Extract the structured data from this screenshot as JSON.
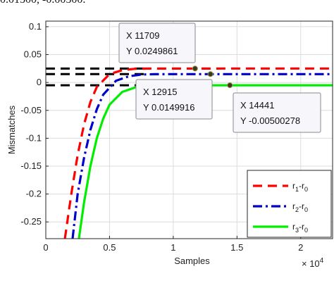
{
  "caption": "0.01500, -0.00500.",
  "chart_data": {
    "type": "line",
    "xlabel": "Samples",
    "ylabel": "Mismatches",
    "x_multiplier": "× 10^4",
    "xlim": [
      0,
      22500
    ],
    "ylim": [
      -0.28,
      0.11
    ],
    "x_ticks": [
      0,
      5000,
      10000,
      15000,
      20000
    ],
    "x_tick_labels": [
      "0",
      "0.5",
      "1",
      "1.5",
      "2"
    ],
    "y_ticks": [
      0.1,
      0.05,
      0,
      -0.05,
      -0.1,
      -0.15,
      -0.2,
      -0.25
    ],
    "y_tick_labels": [
      "0.1",
      "0.05",
      "0",
      "-0.05",
      "-0.1",
      "-0.15",
      "-0.2",
      "-0.25"
    ],
    "grid": true,
    "legend_position": "bottom-right",
    "series": [
      {
        "name": "r1-r0",
        "legend_main": "r",
        "legend_sub1": "1",
        "legend_mid": "-r",
        "legend_sub2": "0",
        "color": "#ff0000",
        "style": "dashed",
        "x": [
          1500,
          2000,
          2500,
          3000,
          3500,
          4000,
          5000,
          6000,
          7000,
          8000,
          10000,
          11709,
          15000,
          22500
        ],
        "y": [
          -0.28,
          -0.2,
          -0.13,
          -0.075,
          -0.035,
          -0.008,
          0.015,
          0.022,
          0.0245,
          0.0249,
          0.02499,
          0.0249861,
          0.025,
          0.025
        ]
      },
      {
        "name": "r2-r0",
        "legend_main": "r",
        "legend_sub1": "2",
        "legend_mid": "-r",
        "legend_sub2": "0",
        "color": "#0000cc",
        "style": "dashdot",
        "x": [
          2100,
          2500,
          3000,
          3500,
          4000,
          4500,
          5500,
          6500,
          7500,
          8500,
          10000,
          12915,
          22500
        ],
        "y": [
          -0.28,
          -0.2,
          -0.135,
          -0.085,
          -0.048,
          -0.022,
          0.003,
          0.011,
          0.0142,
          0.0148,
          0.01498,
          0.0149916,
          0.015
        ]
      },
      {
        "name": "r3-r0",
        "legend_main": "r",
        "legend_sub1": "3",
        "legend_mid": "-r",
        "legend_sub2": "0",
        "color": "#00ee00",
        "style": "solid",
        "x": [
          2600,
          3000,
          3500,
          4000,
          4500,
          5000,
          6000,
          7000,
          8000,
          9000,
          10000,
          14441,
          22500
        ],
        "y": [
          -0.28,
          -0.215,
          -0.15,
          -0.1,
          -0.065,
          -0.04,
          -0.017,
          -0.009,
          -0.0062,
          -0.0054,
          -0.0051,
          -0.00500278,
          -0.005
        ]
      }
    ],
    "reference_lines": [
      {
        "y": 0.025,
        "color": "#000000",
        "style": "dashed",
        "x_end": 8000
      },
      {
        "y": 0.015,
        "color": "#000000",
        "style": "dashed",
        "x_end": 8000
      },
      {
        "y": -0.005,
        "color": "#000000",
        "style": "dashed",
        "x_end": 8000
      }
    ],
    "datatips": [
      {
        "x": 11709,
        "y": 0.0249861,
        "x_text": "X 11709",
        "y_text": "Y 0.0249861"
      },
      {
        "x": 12915,
        "y": 0.0149916,
        "x_text": "X 12915",
        "y_text": "Y 0.0149916"
      },
      {
        "x": 14441,
        "y": -0.00500278,
        "x_text": "X 14441",
        "y_text": "Y -0.00500278"
      }
    ]
  }
}
